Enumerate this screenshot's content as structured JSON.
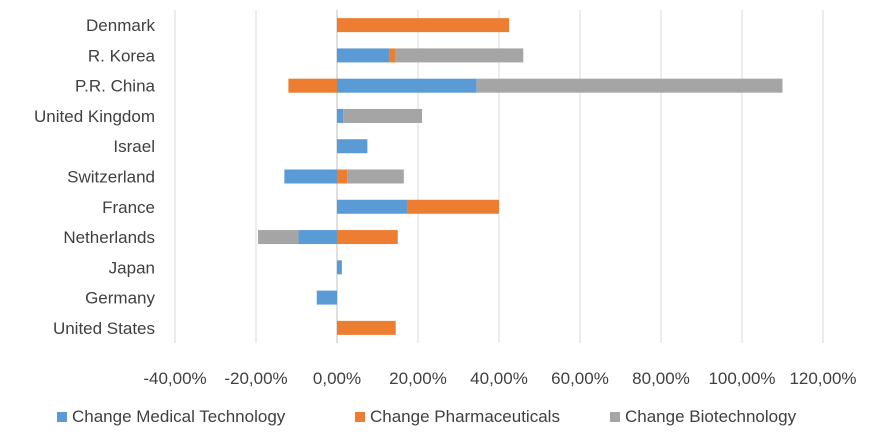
{
  "chart_data": {
    "type": "bar",
    "orientation": "horizontal",
    "stacked": true,
    "categories": [
      "Denmark",
      "R. Korea",
      "P.R. China",
      "United Kingdom",
      "Israel",
      "Switzerland",
      "France",
      "Netherlands",
      "Japan",
      "Germany",
      "United States"
    ],
    "series": [
      {
        "name": "Change Medical Technology",
        "color": "#5B9BD5",
        "values": [
          0,
          13,
          34.5,
          1.5,
          7.5,
          -13,
          17.5,
          -9.5,
          1.2,
          -5,
          0
        ]
      },
      {
        "name": "Change Pharmaceuticals",
        "color": "#ED7D31",
        "values": [
          42.5,
          1.5,
          -12,
          0,
          0,
          2.5,
          22.5,
          15,
          0,
          0,
          14.5
        ]
      },
      {
        "name": "Change Biotechnology",
        "color": "#A5A5A5",
        "values": [
          0,
          31.5,
          75.5,
          19.5,
          0,
          14,
          0,
          -10,
          0,
          0,
          0
        ]
      }
    ],
    "x_ticks": [
      "-40,00%",
      "-20,00%",
      "0,00%",
      "20,00%",
      "40,00%",
      "60,00%",
      "80,00%",
      "100,00%",
      "120,00%"
    ],
    "xlim": [
      -40,
      120
    ],
    "grid": "vertical",
    "legend": "bottom"
  }
}
